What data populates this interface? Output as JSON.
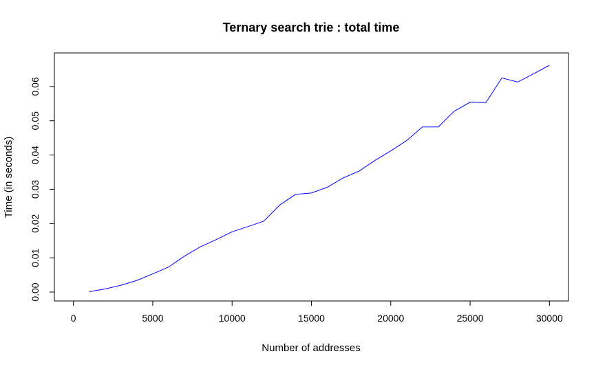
{
  "chart_data": {
    "type": "line",
    "title": "Ternary search trie : total time",
    "xlabel": "Number of addresses",
    "ylabel": "Time (in seconds)",
    "xlim": [
      -1200,
      31200
    ],
    "ylim": [
      -0.0026,
      0.0698
    ],
    "x_ticks": [
      0,
      5000,
      10000,
      15000,
      20000,
      25000,
      30000
    ],
    "x_tick_labels": [
      "0",
      "5000",
      "10000",
      "15000",
      "20000",
      "25000",
      "30000"
    ],
    "y_ticks": [
      0.0,
      0.01,
      0.02,
      0.03,
      0.04,
      0.05,
      0.06
    ],
    "y_tick_labels": [
      "0.00",
      "0.01",
      "0.02",
      "0.03",
      "0.04",
      "0.05",
      "0.06"
    ],
    "grid": false,
    "series": [
      {
        "color": "#0000ff",
        "x": [
          1000,
          2000,
          3000,
          4000,
          5000,
          6000,
          7000,
          8000,
          9000,
          10000,
          11000,
          12000,
          13000,
          14000,
          15000,
          16000,
          17000,
          18000,
          19000,
          20000,
          21000,
          22000,
          23000,
          24000,
          25000,
          26000,
          27000,
          28000,
          29000,
          30000
        ],
        "values": [
          0.0001,
          0.0009,
          0.002,
          0.0034,
          0.0053,
          0.0073,
          0.0105,
          0.0132,
          0.0153,
          0.0176,
          0.0191,
          0.0207,
          0.0254,
          0.0285,
          0.0289,
          0.0306,
          0.0333,
          0.0353,
          0.0384,
          0.0412,
          0.0442,
          0.0482,
          0.0482,
          0.0528,
          0.0554,
          0.0553,
          0.0625,
          0.0613,
          0.0637,
          0.0662
        ]
      }
    ]
  }
}
